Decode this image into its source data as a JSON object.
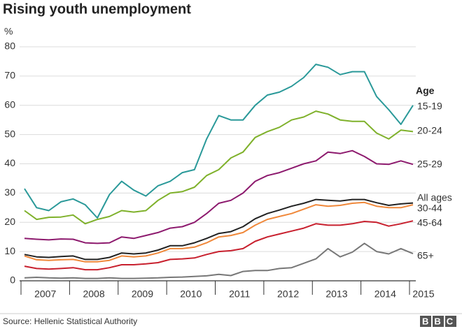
{
  "chart_data": {
    "type": "line",
    "title": "Rising youth unemployment",
    "y_label": "%",
    "legend_title": "Age",
    "source": "Source: Hellenic Statistical Authority",
    "logo": "BBC",
    "x": [
      2007,
      2007.25,
      2007.5,
      2007.75,
      2008,
      2008.25,
      2008.5,
      2008.75,
      2009,
      2009.25,
      2009.5,
      2009.75,
      2010,
      2010.25,
      2010.5,
      2010.75,
      2011,
      2011.25,
      2011.5,
      2011.75,
      2012,
      2012.25,
      2012.5,
      2012.75,
      2013,
      2013.25,
      2013.5,
      2013.75,
      2014,
      2014.25,
      2014.5,
      2014.75,
      2015
    ],
    "xlim": [
      2007,
      2015
    ],
    "xticks": [
      2007,
      2008,
      2009,
      2010,
      2011,
      2012,
      2013,
      2014,
      2015
    ],
    "ylim": [
      0,
      80
    ],
    "yticks": [
      0,
      10,
      20,
      30,
      40,
      50,
      60,
      70,
      80
    ],
    "grid": true,
    "series": [
      {
        "name": "15-19",
        "color": "#2a9999",
        "values": [
          31.5,
          25,
          24,
          27,
          28,
          26,
          21.5,
          29.5,
          34,
          31,
          29,
          32.5,
          34,
          37,
          38,
          48.5,
          56.5,
          55,
          55,
          60,
          63.5,
          64.5,
          66.5,
          69.5,
          74,
          73,
          70.5,
          71.5,
          71.5,
          63,
          58.5,
          53.5,
          60
        ]
      },
      {
        "name": "20-24",
        "color": "#7fb12b",
        "values": [
          24,
          21,
          21.7,
          21.8,
          22.5,
          19.5,
          21,
          22,
          24,
          23.5,
          24,
          27.5,
          30,
          30.5,
          32,
          36,
          38,
          42,
          44,
          49,
          51,
          52.5,
          55,
          56,
          58,
          57,
          55,
          54.5,
          54.5,
          50.5,
          48.5,
          51.5,
          51
        ]
      },
      {
        "name": "25-29",
        "color": "#8d1a6e",
        "values": [
          14.5,
          14.2,
          14,
          14.3,
          14.2,
          13,
          12.8,
          13,
          15,
          14.5,
          15.5,
          16.5,
          18,
          18.5,
          20,
          23,
          26.5,
          27.5,
          30,
          34,
          36,
          37,
          38.5,
          40,
          41,
          44,
          43.5,
          44.5,
          42.5,
          40,
          39.8,
          41,
          39.8
        ]
      },
      {
        "name": "All ages",
        "color": "#222222",
        "values": [
          9,
          8.2,
          8,
          8.3,
          8.5,
          7.3,
          7.3,
          8,
          9.5,
          9.2,
          9.5,
          10.5,
          12,
          12,
          13,
          14.5,
          16.2,
          16.8,
          18.5,
          21.2,
          23,
          24.2,
          25.5,
          26.5,
          27.8,
          27.5,
          27.3,
          27.8,
          27.8,
          26.7,
          25.8,
          26.3,
          26.6
        ]
      },
      {
        "name": "30-44",
        "color": "#f0883a",
        "values": [
          8.5,
          7.2,
          7,
          7.2,
          7.3,
          6.5,
          6.5,
          7,
          8.5,
          8.2,
          8.5,
          9.5,
          11,
          11,
          11.5,
          13,
          15,
          15.5,
          16.5,
          19,
          21,
          22,
          23,
          24.5,
          26,
          25.5,
          25.8,
          26.5,
          26.8,
          25.5,
          25,
          25,
          26
        ]
      },
      {
        "name": "45-64",
        "color": "#c8202e",
        "values": [
          5,
          4.2,
          4,
          4.2,
          4.5,
          3.8,
          3.8,
          4.5,
          5.5,
          5.5,
          5.8,
          6.2,
          7.3,
          7.5,
          7.8,
          9,
          10,
          10.3,
          11,
          13.5,
          15,
          16,
          17,
          18,
          19.5,
          19,
          19,
          19.5,
          20.3,
          20,
          18.7,
          19.5,
          20.5
        ]
      },
      {
        "name": "65+",
        "color": "#777777",
        "values": [
          1,
          1.2,
          1,
          0.9,
          1,
          0.8,
          0.8,
          1,
          0.8,
          0.8,
          0.9,
          1,
          1.2,
          1.3,
          1.5,
          1.7,
          2.2,
          1.8,
          3.2,
          3.5,
          3.5,
          4.2,
          4.5,
          6,
          7.5,
          11,
          8.2,
          9.8,
          12.8,
          10,
          9.2,
          11,
          9.3
        ]
      }
    ]
  }
}
